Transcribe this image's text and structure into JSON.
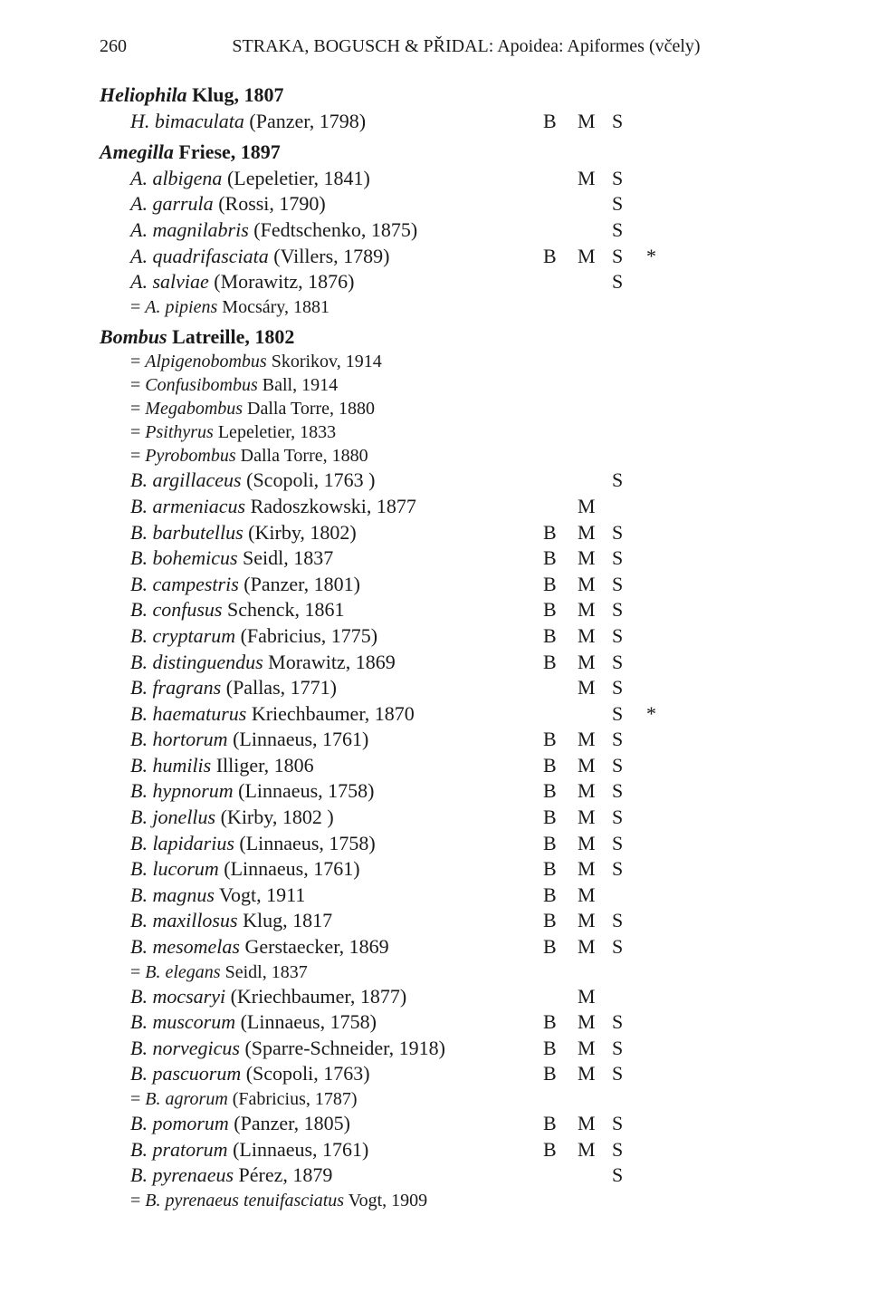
{
  "page_number": "260",
  "running_title": "STRAKA, BOGUSCH & PŘIDAL: Apoidea: Apiformes (včely)",
  "entries": [
    {
      "type": "genus",
      "html": "<span class='genus'>Heliophila</span> <span class='auth'>Klug, 1807</span>",
      "B": "",
      "M": "",
      "S": "",
      "star": ""
    },
    {
      "type": "species",
      "html": "<span class='sp'>H. bimaculata</span> <span class='na'>(Panzer, 1798)</span>",
      "B": "B",
      "M": "M",
      "S": "S",
      "star": ""
    },
    {
      "type": "genus",
      "gap": true,
      "html": "<span class='genus'>Amegilla</span> <span class='auth'>Friese, 1897</span>",
      "B": "",
      "M": "",
      "S": "",
      "star": ""
    },
    {
      "type": "species",
      "html": "<span class='sp'>A. albigena</span> <span class='na'>(Lepeletier, 1841)</span>",
      "B": "",
      "M": "M",
      "S": "S",
      "star": ""
    },
    {
      "type": "species",
      "html": "<span class='sp'>A. garrula</span> <span class='na'>(Rossi, 1790)</span>",
      "B": "",
      "M": "",
      "S": "S",
      "star": ""
    },
    {
      "type": "species",
      "html": "<span class='sp'>A. magnilabris</span> <span class='na'>(Fedtschenko, 1875)</span>",
      "B": "",
      "M": "",
      "S": "S",
      "star": ""
    },
    {
      "type": "species",
      "html": "<span class='sp'>A. quadrifasciata</span> <span class='na'>(Villers, 1789)</span>",
      "B": "B",
      "M": "M",
      "S": "S",
      "star": "*"
    },
    {
      "type": "species",
      "html": "<span class='sp'>A. salviae</span> <span class='na'>(Morawitz, 1876)</span>",
      "B": "",
      "M": "",
      "S": "S",
      "star": ""
    },
    {
      "type": "syn",
      "html": "<span class='syn-na'>= </span><span class='syn'>A. pipiens</span> <span class='syn-na'>Mocsáry, 1881</span>",
      "B": "",
      "M": "",
      "S": "",
      "star": ""
    },
    {
      "type": "genus",
      "gap": true,
      "html": "<span class='genus'>Bombus</span> <span class='auth'>Latreille, 1802</span>",
      "B": "",
      "M": "",
      "S": "",
      "star": ""
    },
    {
      "type": "syn",
      "html": "<span class='syn-na'>= </span><span class='syn'>Alpigenobombus</span> <span class='syn-na'>Skorikov, 1914</span>",
      "B": "",
      "M": "",
      "S": "",
      "star": ""
    },
    {
      "type": "syn",
      "html": "<span class='syn-na'>= </span><span class='syn'>Confusibombus</span> <span class='syn-na'>Ball, 1914</span>",
      "B": "",
      "M": "",
      "S": "",
      "star": ""
    },
    {
      "type": "syn",
      "html": "<span class='syn-na'>= </span><span class='syn'>Megabombus</span> <span class='syn-na'>Dalla Torre, 1880</span>",
      "B": "",
      "M": "",
      "S": "",
      "star": ""
    },
    {
      "type": "syn",
      "html": "<span class='syn-na'>= </span><span class='syn'>Psithyrus</span> <span class='syn-na'>Lepeletier, 1833</span>",
      "B": "",
      "M": "",
      "S": "",
      "star": ""
    },
    {
      "type": "syn",
      "html": "<span class='syn-na'>= </span><span class='syn'>Pyrobombus</span> <span class='syn-na'>Dalla Torre, 1880</span>",
      "B": "",
      "M": "",
      "S": "",
      "star": ""
    },
    {
      "type": "species",
      "html": "<span class='sp'>B. argillaceus</span> <span class='na'>(Scopoli, 1763 )</span>",
      "B": "",
      "M": "",
      "S": "S",
      "star": ""
    },
    {
      "type": "species",
      "html": "<span class='sp'>B. armeniacus</span> <span class='na'>Radoszkowski, 1877</span>",
      "B": "",
      "M": "M",
      "S": "",
      "star": ""
    },
    {
      "type": "species",
      "html": "<span class='sp'>B. barbutellus</span> <span class='na'>(Kirby, 1802)</span>",
      "B": "B",
      "M": "M",
      "S": "S",
      "star": ""
    },
    {
      "type": "species",
      "html": "<span class='sp'>B. bohemicus</span> <span class='na'>Seidl, 1837</span>",
      "B": "B",
      "M": "M",
      "S": "S",
      "star": ""
    },
    {
      "type": "species",
      "html": "<span class='sp'>B. campestris</span> <span class='na'>(Panzer, 1801)</span>",
      "B": "B",
      "M": "M",
      "S": "S",
      "star": ""
    },
    {
      "type": "species",
      "html": "<span class='sp'>B. confusus</span> <span class='na'>Schenck, 1861</span>",
      "B": "B",
      "M": "M",
      "S": "S",
      "star": ""
    },
    {
      "type": "species",
      "html": "<span class='sp'>B. cryptarum</span> <span class='na'>(Fabricius, 1775)</span>",
      "B": "B",
      "M": "M",
      "S": "S",
      "star": ""
    },
    {
      "type": "species",
      "html": "<span class='sp'>B. distinguendus</span> <span class='na'>Morawitz, 1869</span>",
      "B": "B",
      "M": "M",
      "S": "S",
      "star": ""
    },
    {
      "type": "species",
      "html": "<span class='sp'>B. fragrans</span> <span class='na'>(Pallas, 1771)</span>",
      "B": "",
      "M": "M",
      "S": "S",
      "star": ""
    },
    {
      "type": "species",
      "html": "<span class='sp'>B. haematurus</span> <span class='na'>Kriechbaumer, 1870</span>",
      "B": "",
      "M": "",
      "S": "S",
      "star": "*"
    },
    {
      "type": "species",
      "html": "<span class='sp'>B. hortorum</span> <span class='na'>(Linnaeus, 1761)</span>",
      "B": "B",
      "M": "M",
      "S": "S",
      "star": ""
    },
    {
      "type": "species",
      "html": "<span class='sp'>B. humilis</span> <span class='na'>Illiger, 1806</span>",
      "B": "B",
      "M": "M",
      "S": "S",
      "star": ""
    },
    {
      "type": "species",
      "html": "<span class='sp'>B. hypnorum</span> <span class='na'>(Linnaeus, 1758)</span>",
      "B": "B",
      "M": "M",
      "S": "S",
      "star": ""
    },
    {
      "type": "species",
      "html": "<span class='sp'>B. jonellus</span> <span class='na'>(Kirby, 1802 )</span>",
      "B": "B",
      "M": "M",
      "S": "S",
      "star": ""
    },
    {
      "type": "species",
      "html": "<span class='sp'>B. lapidarius</span> <span class='na'>(Linnaeus, 1758)</span>",
      "B": "B",
      "M": "M",
      "S": "S",
      "star": ""
    },
    {
      "type": "species",
      "html": "<span class='sp'>B. lucorum</span> <span class='na'>(Linnaeus, 1761)</span>",
      "B": "B",
      "M": "M",
      "S": "S",
      "star": ""
    },
    {
      "type": "species",
      "html": "<span class='sp'>B. magnus</span> <span class='na'>Vogt, 1911</span>",
      "B": "B",
      "M": "M",
      "S": "",
      "star": ""
    },
    {
      "type": "species",
      "html": "<span class='sp'>B. maxillosus</span> <span class='na'>Klug, 1817</span>",
      "B": "B",
      "M": "M",
      "S": "S",
      "star": ""
    },
    {
      "type": "species",
      "html": "<span class='sp'>B. mesomelas</span> <span class='na'>Gerstaecker, 1869</span>",
      "B": "B",
      "M": "M",
      "S": "S",
      "star": ""
    },
    {
      "type": "syn",
      "html": "<span class='syn-na'>= </span><span class='syn'>B. elegans</span> <span class='syn-na'>Seidl, 1837</span>",
      "B": "",
      "M": "",
      "S": "",
      "star": ""
    },
    {
      "type": "species",
      "html": "<span class='sp'>B. mocsaryi</span> <span class='na'>(Kriechbaumer, 1877)</span>",
      "B": "",
      "M": "M",
      "S": "",
      "star": ""
    },
    {
      "type": "species",
      "html": "<span class='sp'>B. muscorum</span> <span class='na'>(Linnaeus, 1758)</span>",
      "B": "B",
      "M": "M",
      "S": "S",
      "star": ""
    },
    {
      "type": "species",
      "html": "<span class='sp'>B. norvegicus</span> <span class='na'>(Sparre-Schneider, 1918)</span>",
      "B": "B",
      "M": "M",
      "S": "S",
      "star": ""
    },
    {
      "type": "species",
      "html": "<span class='sp'>B. pascuorum</span> <span class='na'>(Scopoli, 1763)</span>",
      "B": "B",
      "M": "M",
      "S": "S",
      "star": ""
    },
    {
      "type": "syn",
      "html": "<span class='syn-na'>= </span><span class='syn'>B. agrorum</span> <span class='syn-na'>(Fabricius, 1787)</span>",
      "B": "",
      "M": "",
      "S": "",
      "star": ""
    },
    {
      "type": "species",
      "html": "<span class='sp'>B. pomorum</span> <span class='na'>(Panzer, 1805)</span>",
      "B": "B",
      "M": "M",
      "S": "S",
      "star": ""
    },
    {
      "type": "species",
      "html": "<span class='sp'>B. pratorum</span> <span class='na'>(Linnaeus, 1761)</span>",
      "B": "B",
      "M": "M",
      "S": "S",
      "star": ""
    },
    {
      "type": "species",
      "html": "<span class='sp'>B. pyrenaeus</span> <span class='na'>Pérez, 1879</span>",
      "B": "",
      "M": "",
      "S": "S",
      "star": ""
    },
    {
      "type": "syn",
      "html": "<span class='syn-na'>= </span><span class='syn'>B. pyrenaeus tenuifasciatus</span> <span class='syn-na'>Vogt, 1909</span>",
      "B": "",
      "M": "",
      "S": "",
      "star": ""
    }
  ]
}
